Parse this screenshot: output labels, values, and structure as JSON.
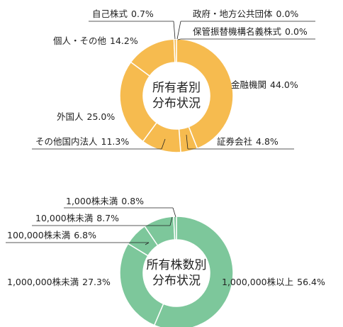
{
  "chart_data": [
    {
      "type": "pie",
      "title": [
        "所有者別",
        "分布状況"
      ],
      "color": "#f6bb4f",
      "categories": [
        "政府・地方公共団体",
        "保管振替機構名義株式",
        "金融機関",
        "証券会社",
        "その他国内法人",
        "外国人",
        "個人・その他",
        "自己株式"
      ],
      "values": [
        0.0,
        0.0,
        44.0,
        4.8,
        11.3,
        25.0,
        14.2,
        0.7
      ],
      "value_labels": [
        "0.0%",
        "0.0%",
        "44.0%",
        "4.8%",
        "11.3%",
        "25.0%",
        "14.2%",
        "0.7%"
      ]
    },
    {
      "type": "pie",
      "title": [
        "所有株数別",
        "分布状況"
      ],
      "color": "#7dc79b",
      "categories": [
        "1,000,000株以上",
        "1,000,000株未満",
        "100,000株未満",
        "10,000株未満",
        "1,000株未満"
      ],
      "values": [
        56.4,
        27.3,
        6.8,
        8.7,
        0.8
      ],
      "value_labels": [
        "56.4%",
        "27.3%",
        "6.8%",
        "8.7%",
        "0.8%"
      ]
    }
  ]
}
